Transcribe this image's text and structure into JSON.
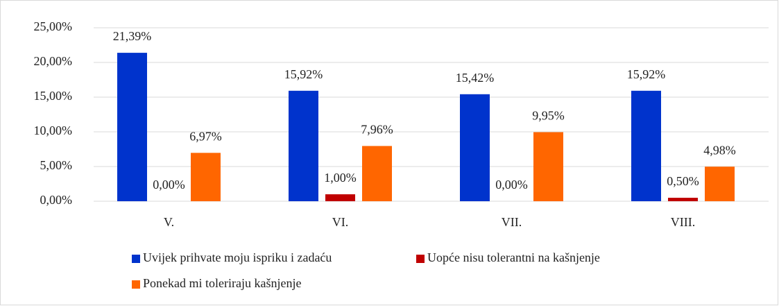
{
  "chart_data": {
    "type": "bar",
    "categories": [
      "V.",
      "VI.",
      "VII.",
      "VIII."
    ],
    "series": [
      {
        "name": "Uvijek prihvate moju ispriku i zadaću",
        "color": "#0033cc",
        "values": [
          21.39,
          15.92,
          15.42,
          15.92
        ],
        "value_labels": [
          "21,39%",
          "15,92%",
          "15,42%",
          "15,92%"
        ]
      },
      {
        "name": "Uopće nisu tolerantni na kašnjenje",
        "color": "#c00000",
        "values": [
          0,
          1,
          0,
          0.5
        ],
        "value_labels": [
          "0,00%",
          "1,00%",
          "0,00%",
          "0,50%"
        ]
      },
      {
        "name": "Ponekad mi toleriraju kašnjenje",
        "color": "#ff6600",
        "values": [
          6.97,
          7.96,
          9.95,
          4.98
        ],
        "value_labels": [
          "6,97%",
          "7,96%",
          "9,95%",
          "4,98%"
        ]
      }
    ],
    "ylim": [
      0,
      25
    ],
    "yticks": [
      {
        "value": 0,
        "label": "0,00%"
      },
      {
        "value": 5,
        "label": "5,00%"
      },
      {
        "value": 10,
        "label": "10,00%"
      },
      {
        "value": 15,
        "label": "15,00%"
      },
      {
        "value": 20,
        "label": "20,00%"
      },
      {
        "value": 25,
        "label": "25,00%"
      }
    ],
    "grid": true,
    "legend": "bottom"
  }
}
